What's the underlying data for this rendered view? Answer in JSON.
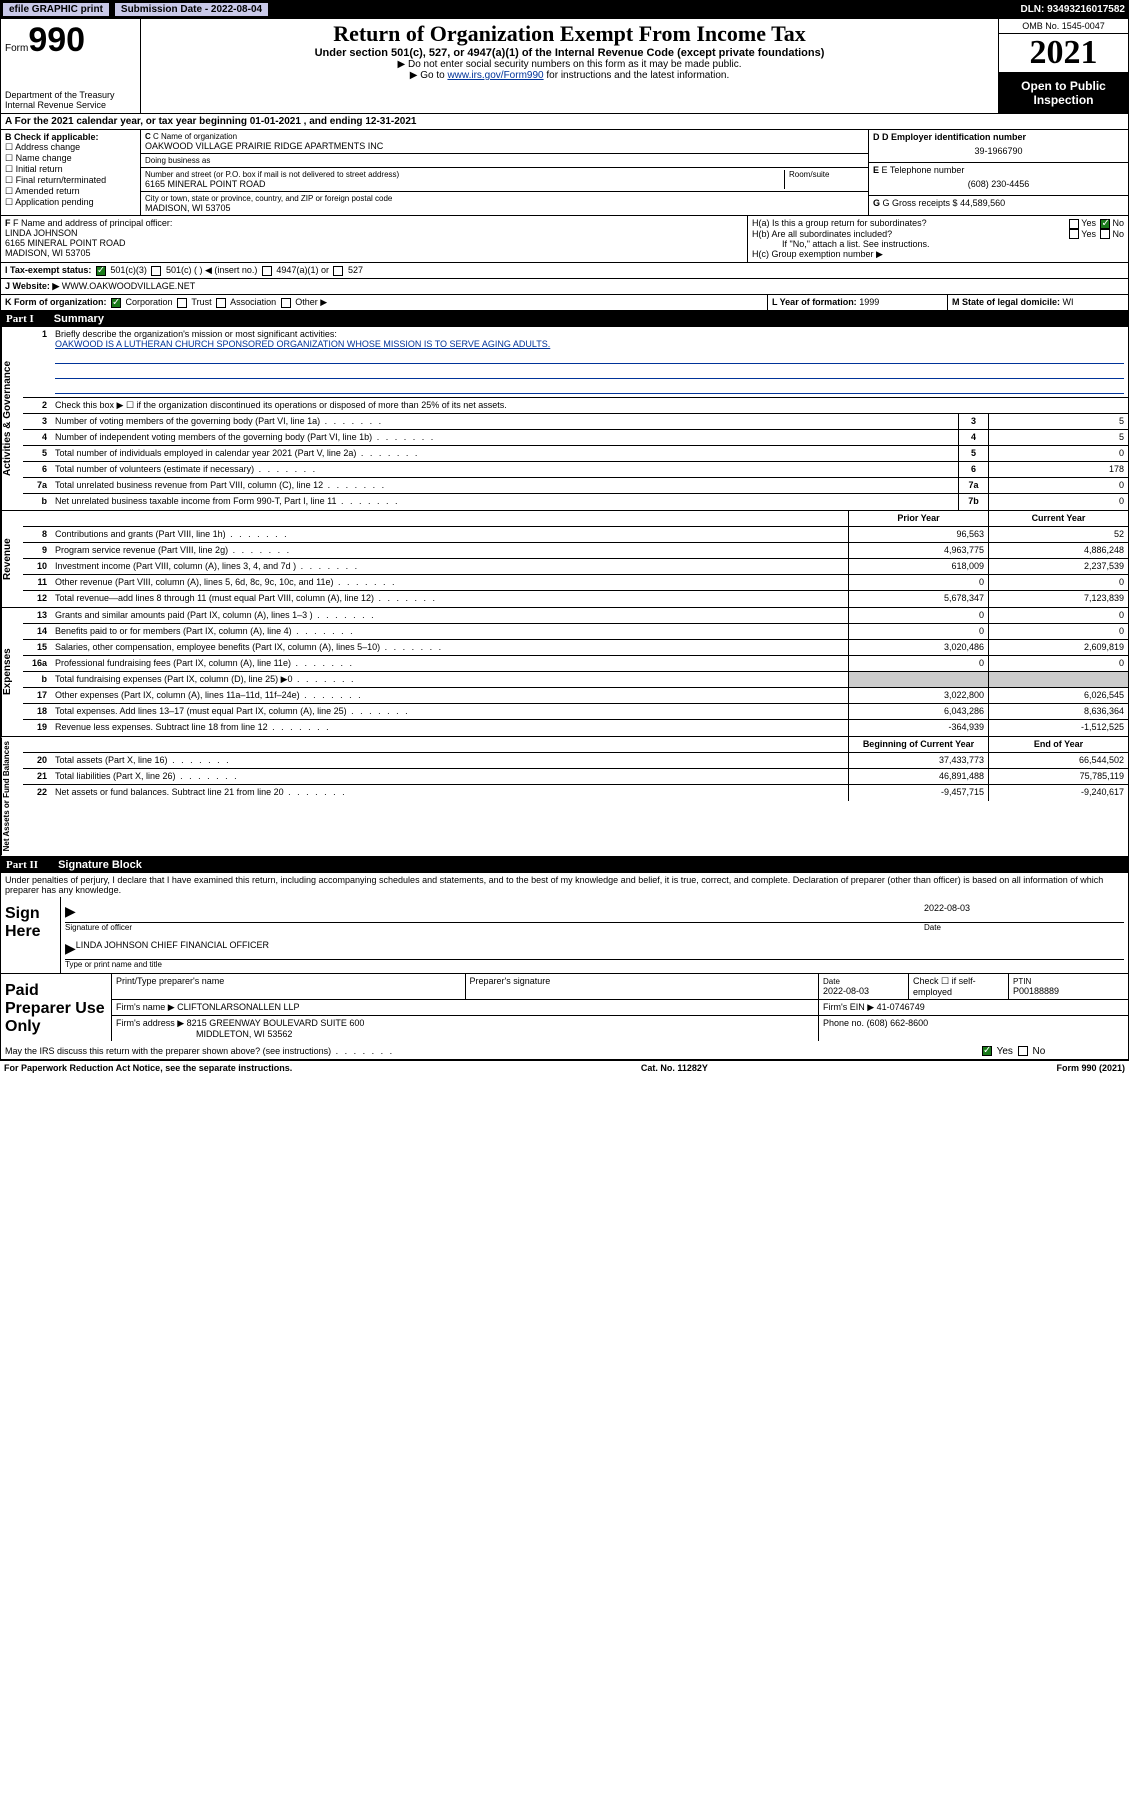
{
  "topbar": {
    "efile": "efile GRAPHIC print",
    "submission_label": "Submission Date - 2022-08-04",
    "dln": "DLN: 93493216017582"
  },
  "header": {
    "form_prefix": "Form",
    "form_number": "990",
    "title": "Return of Organization Exempt From Income Tax",
    "subtitle": "Under section 501(c), 527, or 4947(a)(1) of the Internal Revenue Code (except private foundations)",
    "note1": "▶ Do not enter social security numbers on this form as it may be made public.",
    "note2_pre": "▶ Go to ",
    "note2_link": "www.irs.gov/Form990",
    "note2_post": " for instructions and the latest information.",
    "dept": "Department of the Treasury\nInternal Revenue Service",
    "omb": "OMB No. 1545-0047",
    "year": "2021",
    "open_public": "Open to Public Inspection"
  },
  "section_a": "A For the 2021 calendar year, or tax year beginning 01-01-2021   , and ending 12-31-2021",
  "section_b": {
    "label": "B Check if applicable:",
    "items": [
      "Address change",
      "Name change",
      "Initial return",
      "Final return/terminated",
      "Amended return",
      "Application pending"
    ]
  },
  "section_c": {
    "name_label": "C Name of organization",
    "name": "OAKWOOD VILLAGE PRAIRIE RIDGE APARTMENTS INC",
    "dba_label": "Doing business as",
    "dba": "",
    "addr_label": "Number and street (or P.O. box if mail is not delivered to street address)",
    "room_label": "Room/suite",
    "addr": "6165 MINERAL POINT ROAD",
    "city_label": "City or town, state or province, country, and ZIP or foreign postal code",
    "city": "MADISON, WI  53705"
  },
  "section_d": {
    "label": "D Employer identification number",
    "value": "39-1966790"
  },
  "section_e": {
    "label": "E Telephone number",
    "value": "(608) 230-4456"
  },
  "section_g": {
    "label": "G Gross receipts $",
    "value": "44,589,560"
  },
  "section_f": {
    "label": "F Name and address of principal officer:",
    "name": "LINDA JOHNSON",
    "addr1": "6165 MINERAL POINT ROAD",
    "addr2": "MADISON, WI  53705"
  },
  "section_h": {
    "ha": "H(a)  Is this a group return for subordinates?",
    "hb": "H(b)  Are all subordinates included?",
    "hb_note": "If \"No,\" attach a list. See instructions.",
    "hc": "H(c)  Group exemption number ▶",
    "yes": "Yes",
    "no": "No"
  },
  "section_i": {
    "label": "I   Tax-exempt status:",
    "opts": [
      "501(c)(3)",
      "501(c) (   ) ◀ (insert no.)",
      "4947(a)(1) or",
      "527"
    ]
  },
  "section_j": {
    "label": "J   Website: ▶",
    "value": "WWW.OAKWOODVILLAGE.NET"
  },
  "section_k": {
    "label": "K Form of organization:",
    "opts": [
      "Corporation",
      "Trust",
      "Association",
      "Other ▶"
    ]
  },
  "section_l": {
    "label": "L Year of formation:",
    "value": "1999"
  },
  "section_m": {
    "label": "M State of legal domicile:",
    "value": "WI"
  },
  "part1": {
    "label": "Part I",
    "title": "Summary",
    "mission_label": "Briefly describe the organization's mission or most significant activities:",
    "mission": "OAKWOOD IS A LUTHERAN CHURCH SPONSORED ORGANIZATION WHOSE MISSION IS TO SERVE AGING ADULTS.",
    "line2": "Check this box ▶ ☐  if the organization discontinued its operations or disposed of more than 25% of its net assets.",
    "governance": {
      "tab": "Activities & Governance",
      "rows": [
        {
          "n": "3",
          "t": "Number of voting members of the governing body (Part VI, line 1a)",
          "box": "3",
          "v": "5"
        },
        {
          "n": "4",
          "t": "Number of independent voting members of the governing body (Part VI, line 1b)",
          "box": "4",
          "v": "5"
        },
        {
          "n": "5",
          "t": "Total number of individuals employed in calendar year 2021 (Part V, line 2a)",
          "box": "5",
          "v": "0"
        },
        {
          "n": "6",
          "t": "Total number of volunteers (estimate if necessary)",
          "box": "6",
          "v": "178"
        },
        {
          "n": "7a",
          "t": "Total unrelated business revenue from Part VIII, column (C), line 12",
          "box": "7a",
          "v": "0"
        },
        {
          "n": "b",
          "t": "Net unrelated business taxable income from Form 990-T, Part I, line 11",
          "box": "7b",
          "v": "0"
        }
      ]
    },
    "col_prior": "Prior Year",
    "col_current": "Current Year",
    "revenue": {
      "tab": "Revenue",
      "rows": [
        {
          "n": "8",
          "t": "Contributions and grants (Part VIII, line 1h)",
          "p": "96,563",
          "c": "52"
        },
        {
          "n": "9",
          "t": "Program service revenue (Part VIII, line 2g)",
          "p": "4,963,775",
          "c": "4,886,248"
        },
        {
          "n": "10",
          "t": "Investment income (Part VIII, column (A), lines 3, 4, and 7d )",
          "p": "618,009",
          "c": "2,237,539"
        },
        {
          "n": "11",
          "t": "Other revenue (Part VIII, column (A), lines 5, 6d, 8c, 9c, 10c, and 11e)",
          "p": "0",
          "c": "0"
        },
        {
          "n": "12",
          "t": "Total revenue—add lines 8 through 11 (must equal Part VIII, column (A), line 12)",
          "p": "5,678,347",
          "c": "7,123,839"
        }
      ]
    },
    "expenses": {
      "tab": "Expenses",
      "rows": [
        {
          "n": "13",
          "t": "Grants and similar amounts paid (Part IX, column (A), lines 1–3 )",
          "p": "0",
          "c": "0"
        },
        {
          "n": "14",
          "t": "Benefits paid to or for members (Part IX, column (A), line 4)",
          "p": "0",
          "c": "0"
        },
        {
          "n": "15",
          "t": "Salaries, other compensation, employee benefits (Part IX, column (A), lines 5–10)",
          "p": "3,020,486",
          "c": "2,609,819"
        },
        {
          "n": "16a",
          "t": "Professional fundraising fees (Part IX, column (A), line 11e)",
          "p": "0",
          "c": "0"
        },
        {
          "n": "b",
          "t": "Total fundraising expenses (Part IX, column (D), line 25) ▶0",
          "p": "",
          "c": "",
          "shaded": true
        },
        {
          "n": "17",
          "t": "Other expenses (Part IX, column (A), lines 11a–11d, 11f–24e)",
          "p": "3,022,800",
          "c": "6,026,545"
        },
        {
          "n": "18",
          "t": "Total expenses. Add lines 13–17 (must equal Part IX, column (A), line 25)",
          "p": "6,043,286",
          "c": "8,636,364"
        },
        {
          "n": "19",
          "t": "Revenue less expenses. Subtract line 18 from line 12",
          "p": "-364,939",
          "c": "-1,512,525"
        }
      ]
    },
    "col_begin": "Beginning of Current Year",
    "col_end": "End of Year",
    "netassets": {
      "tab": "Net Assets or Fund Balances",
      "rows": [
        {
          "n": "20",
          "t": "Total assets (Part X, line 16)",
          "p": "37,433,773",
          "c": "66,544,502"
        },
        {
          "n": "21",
          "t": "Total liabilities (Part X, line 26)",
          "p": "46,891,488",
          "c": "75,785,119"
        },
        {
          "n": "22",
          "t": "Net assets or fund balances. Subtract line 21 from line 20",
          "p": "-9,457,715",
          "c": "-9,240,617"
        }
      ]
    }
  },
  "part2": {
    "label": "Part II",
    "title": "Signature Block",
    "decl": "Under penalties of perjury, I declare that I have examined this return, including accompanying schedules and statements, and to the best of my knowledge and belief, it is true, correct, and complete. Declaration of preparer (other than officer) is based on all information of which preparer has any knowledge.",
    "sign_here": "Sign Here",
    "sig_officer": "Signature of officer",
    "sig_date": "2022-08-03",
    "date_label": "Date",
    "officer_name": "LINDA JOHNSON  CHIEF FINANCIAL OFFICER",
    "type_name": "Type or print name and title",
    "paid_prep": "Paid Preparer Use Only",
    "prep_name_label": "Print/Type preparer's name",
    "prep_sig_label": "Preparer's signature",
    "prep_date": "2022-08-03",
    "check_if": "Check ☐ if self-employed",
    "ptin_label": "PTIN",
    "ptin": "P00188889",
    "firm_name_label": "Firm's name    ▶",
    "firm_name": "CLIFTONLARSONALLEN LLP",
    "firm_ein_label": "Firm's EIN ▶",
    "firm_ein": "41-0746749",
    "firm_addr_label": "Firm's address ▶",
    "firm_addr1": "8215 GREENWAY BOULEVARD SUITE 600",
    "firm_addr2": "MIDDLETON, WI  53562",
    "phone_label": "Phone no.",
    "phone": "(608) 662-8600",
    "may_irs": "May the IRS discuss this return with the preparer shown above? (see instructions)"
  },
  "footer": {
    "left": "For Paperwork Reduction Act Notice, see the separate instructions.",
    "mid": "Cat. No. 11282Y",
    "right": "Form 990 (2021)"
  }
}
